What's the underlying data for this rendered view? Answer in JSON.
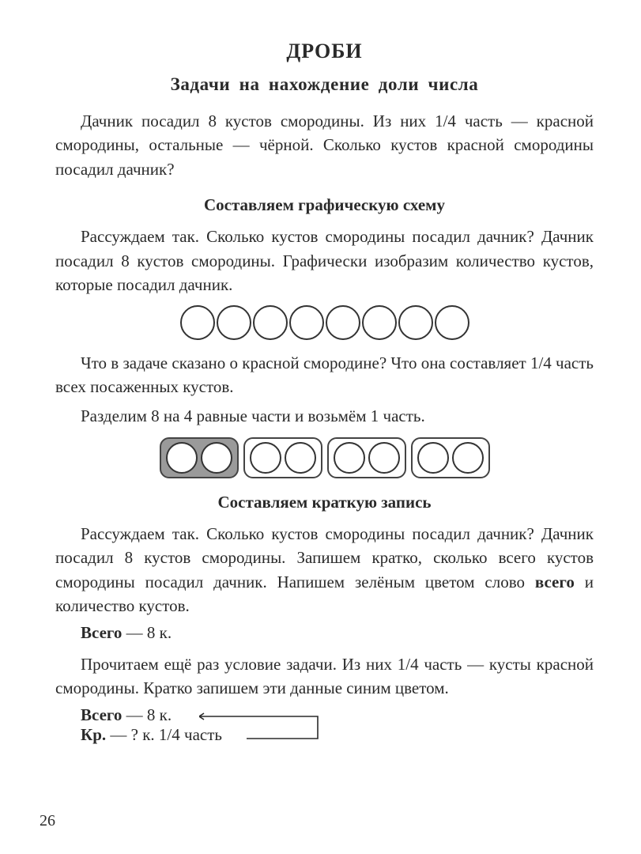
{
  "title_main": "ДРОБИ",
  "title_sub": "Задачи на нахождение доли числа",
  "problem": "Дачник посадил 8 кустов смородины. Из них 1/4 часть — красной смородины, остальные — чёрной. Сколько кустов красной смородины посадил дачник?",
  "section1_head": "Составляем графическую схему",
  "section1_p1": "Рассуждаем так. Сколько кустов смородины посадил дачник? Дачник посадил 8 кустов смородины. Графически изобразим количество кустов, которые посадил дачник.",
  "circles1_count": 8,
  "circles1_style": {
    "diameter": 44,
    "border_color": "#333333",
    "fill": "#ffffff"
  },
  "section1_p2": "Что в задаче сказано о красной смородине? Что она составляет 1/4 часть всех посаженных кустов.",
  "section1_p3": "Разделим 8 на 4 равные части и возьмём 1 часть.",
  "groups": {
    "count": 4,
    "per_group": 2,
    "shaded_index": 0,
    "group_border_color": "#444444",
    "group_border_radius": 12,
    "shaded_fill": "#9a9a9a",
    "unshaded_fill": "#ffffff",
    "circle_diameter": 40,
    "circle_border": "#333333",
    "circle_fill": "#ffffff"
  },
  "section2_head": "Составляем краткую запись",
  "section2_p1_pre": "Рассуждаем так. Сколько кустов смородины посадил дачник? Дачник посадил 8 кустов смородины. Запишем кратко, сколько всего кустов смородины посадил дачник. Напишем зелёным цветом слово ",
  "section2_p1_bold": "всего",
  "section2_p1_post": " и количество кустов.",
  "total_label": "Всего",
  "total_value": "— 8 к.",
  "section2_p2": "Прочитаем ещё раз условие задачи. Из них 1/4 часть — кусты красной смородины. Кратко запишем эти данные синим цветом.",
  "arrow": {
    "row1_label": "Всего",
    "row1_value": "— 8 к.",
    "row2_label": "Кр.",
    "row2_value": "— ? к. 1/4 часть",
    "line_color": "#2a2a2a"
  },
  "page_number": "26"
}
